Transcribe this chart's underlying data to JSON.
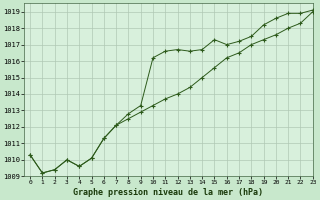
{
  "title": "Graphe pression niveau de la mer (hPa)",
  "background_color": "#c8e8cc",
  "plot_bg_color": "#d8f0dc",
  "grid_color": "#b0c8b4",
  "line_color": "#2d5a1b",
  "xlim": [
    -0.5,
    23
  ],
  "ylim": [
    1009,
    1019.5
  ],
  "xticks": [
    0,
    1,
    2,
    3,
    4,
    5,
    6,
    7,
    8,
    9,
    10,
    11,
    12,
    13,
    14,
    15,
    16,
    17,
    18,
    19,
    20,
    21,
    22,
    23
  ],
  "yticks": [
    1009,
    1010,
    1011,
    1012,
    1013,
    1014,
    1015,
    1016,
    1017,
    1018,
    1019
  ],
  "series1_x": [
    0,
    1,
    2,
    3,
    4,
    5,
    6,
    7,
    8,
    9,
    10,
    11,
    12,
    13,
    14,
    15,
    16,
    17,
    18,
    19,
    20,
    21,
    22,
    23
  ],
  "series1_y": [
    1010.3,
    1009.2,
    1009.4,
    1010.0,
    1009.6,
    1010.1,
    1011.3,
    1012.1,
    1012.8,
    1013.3,
    1016.2,
    1016.6,
    1016.7,
    1016.6,
    1016.7,
    1017.3,
    1017.0,
    1017.2,
    1017.5,
    1018.2,
    1018.6,
    1018.9,
    1018.9,
    1019.1
  ],
  "series2_x": [
    0,
    1,
    2,
    3,
    4,
    5,
    6,
    7,
    8,
    9,
    10,
    11,
    12,
    13,
    14,
    15,
    16,
    17,
    18,
    19,
    20,
    21,
    22,
    23
  ],
  "series2_y": [
    1010.3,
    1009.2,
    1009.4,
    1010.0,
    1009.6,
    1010.1,
    1011.3,
    1012.1,
    1012.5,
    1012.9,
    1013.3,
    1013.7,
    1014.0,
    1014.4,
    1015.0,
    1015.6,
    1016.2,
    1016.5,
    1017.0,
    1017.3,
    1017.6,
    1018.0,
    1018.3,
    1019.0
  ]
}
